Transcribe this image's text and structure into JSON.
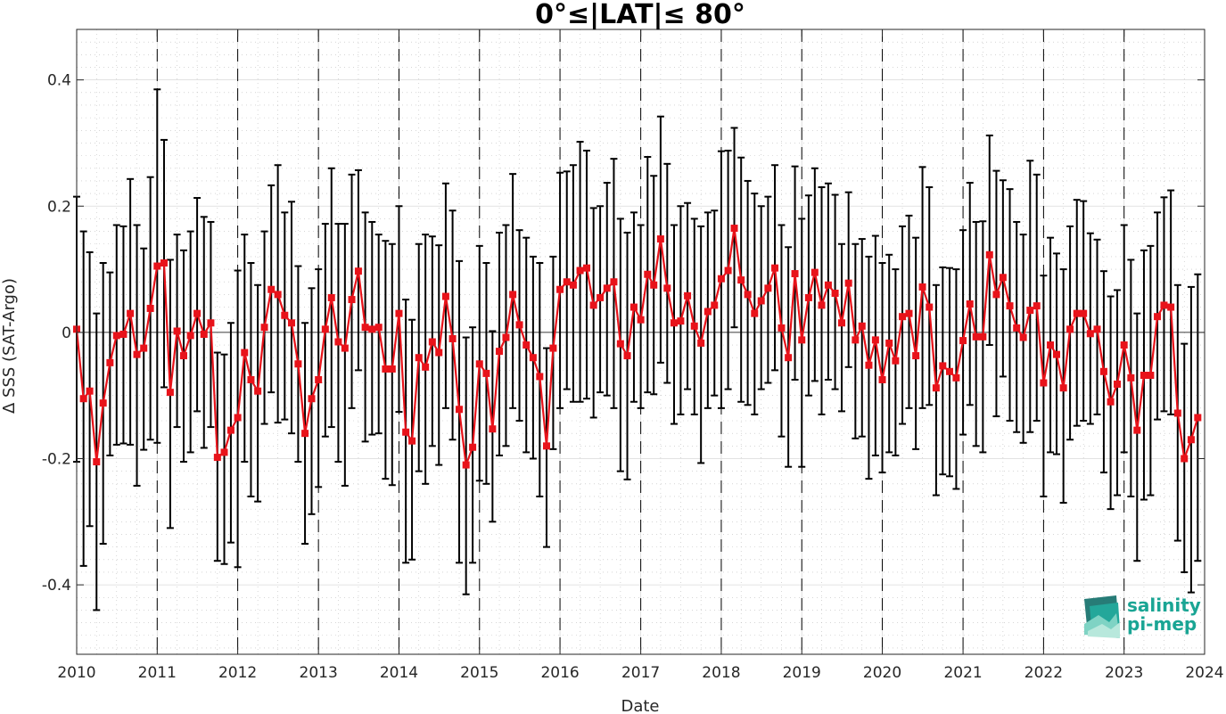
{
  "logo": {
    "line1": "salinity",
    "line2": "pi-mep",
    "color": "#1aa594"
  },
  "chart_data": {
    "type": "line",
    "title": "0°≤|LAT|≤ 80°",
    "xlabel": "Date",
    "ylabel": "Δ SSS (SAT-Argo)",
    "xlim": [
      "2010-01-01",
      "2024-01-01"
    ],
    "ylim": [
      -0.51,
      0.48
    ],
    "x_ticks": [
      "2010",
      "2011",
      "2012",
      "2013",
      "2014",
      "2015",
      "2016",
      "2017",
      "2018",
      "2019",
      "2020",
      "2021",
      "2022",
      "2023",
      "2024"
    ],
    "y_ticks": [
      -0.4,
      -0.2,
      0,
      0.2,
      0.4
    ],
    "y_tick_labels": [
      "-0.4",
      "-0.2",
      "0",
      "0.2",
      "0.4"
    ],
    "grid": true,
    "year_separators": "dashed vertical lines at each year start",
    "series": [
      {
        "color": "#e8131a",
        "marker": "square",
        "error_bar_color": "#000000",
        "dates": [
          "2010-01",
          "2010-02",
          "2010-03",
          "2010-04",
          "2010-05",
          "2010-06",
          "2010-07",
          "2010-08",
          "2010-09",
          "2010-10",
          "2010-11",
          "2010-12",
          "2011-01",
          "2011-02",
          "2011-03",
          "2011-04",
          "2011-05",
          "2011-06",
          "2011-07",
          "2011-08",
          "2011-09",
          "2011-10",
          "2011-11",
          "2011-12",
          "2012-01",
          "2012-02",
          "2012-03",
          "2012-04",
          "2012-05",
          "2012-06",
          "2012-07",
          "2012-08",
          "2012-09",
          "2012-10",
          "2012-11",
          "2012-12",
          "2013-01",
          "2013-02",
          "2013-03",
          "2013-04",
          "2013-05",
          "2013-06",
          "2013-07",
          "2013-08",
          "2013-09",
          "2013-10",
          "2013-11",
          "2013-12",
          "2014-01",
          "2014-02",
          "2014-03",
          "2014-04",
          "2014-05",
          "2014-06",
          "2014-07",
          "2014-08",
          "2014-09",
          "2014-10",
          "2014-11",
          "2014-12",
          "2015-01",
          "2015-02",
          "2015-03",
          "2015-04",
          "2015-05",
          "2015-06",
          "2015-07",
          "2015-08",
          "2015-09",
          "2015-10",
          "2015-11",
          "2015-12",
          "2016-01",
          "2016-02",
          "2016-03",
          "2016-04",
          "2016-05",
          "2016-06",
          "2016-07",
          "2016-08",
          "2016-09",
          "2016-10",
          "2016-11",
          "2016-12",
          "2017-01",
          "2017-02",
          "2017-03",
          "2017-04",
          "2017-05",
          "2017-06",
          "2017-07",
          "2017-08",
          "2017-09",
          "2017-10",
          "2017-11",
          "2017-12",
          "2018-01",
          "2018-02",
          "2018-03",
          "2018-04",
          "2018-05",
          "2018-06",
          "2018-07",
          "2018-08",
          "2018-09",
          "2018-10",
          "2018-11",
          "2018-12",
          "2019-01",
          "2019-02",
          "2019-03",
          "2019-04",
          "2019-05",
          "2019-06",
          "2019-07",
          "2019-08",
          "2019-09",
          "2019-10",
          "2019-11",
          "2019-12",
          "2020-01",
          "2020-02",
          "2020-03",
          "2020-04",
          "2020-05",
          "2020-06",
          "2020-07",
          "2020-08",
          "2020-09",
          "2020-10",
          "2020-11",
          "2020-12",
          "2021-01",
          "2021-02",
          "2021-03",
          "2021-04",
          "2021-05",
          "2021-06",
          "2021-07",
          "2021-08",
          "2021-09",
          "2021-10",
          "2021-11",
          "2021-12",
          "2022-01",
          "2022-02",
          "2022-03",
          "2022-04",
          "2022-05",
          "2022-06",
          "2022-07",
          "2022-08",
          "2022-09",
          "2022-10",
          "2022-11",
          "2022-12",
          "2023-01",
          "2023-02",
          "2023-03",
          "2023-04",
          "2023-05",
          "2023-06",
          "2023-07",
          "2023-08",
          "2023-09",
          "2023-10",
          "2023-11",
          "2023-12"
        ],
        "values": [
          0.005,
          -0.105,
          -0.093,
          -0.205,
          -0.112,
          -0.048,
          -0.005,
          -0.003,
          0.03,
          -0.035,
          -0.025,
          0.038,
          0.105,
          0.11,
          -0.095,
          0.002,
          -0.037,
          -0.005,
          0.03,
          -0.003,
          0.015,
          -0.198,
          -0.19,
          -0.155,
          -0.135,
          -0.032,
          -0.075,
          -0.093,
          0.008,
          0.068,
          0.06,
          0.027,
          0.015,
          -0.05,
          -0.16,
          -0.105,
          -0.075,
          0.005,
          0.055,
          -0.015,
          -0.025,
          0.052,
          0.097,
          0.008,
          0.005,
          0.008,
          -0.058,
          -0.058,
          0.03,
          -0.158,
          -0.172,
          -0.04,
          -0.055,
          -0.015,
          -0.032,
          0.057,
          -0.01,
          -0.122,
          -0.21,
          -0.182,
          -0.05,
          -0.065,
          -0.153,
          -0.03,
          -0.008,
          0.06,
          0.012,
          -0.02,
          -0.04,
          -0.07,
          -0.18,
          -0.025,
          0.068,
          0.08,
          0.075,
          0.098,
          0.102,
          0.043,
          0.055,
          0.07,
          0.08,
          -0.018,
          -0.037,
          0.04,
          0.02,
          0.092,
          0.075,
          0.148,
          0.07,
          0.015,
          0.018,
          0.058,
          0.01,
          -0.017,
          0.033,
          0.043,
          0.085,
          0.098,
          0.165,
          0.083,
          0.06,
          0.03,
          0.05,
          0.07,
          0.102,
          0.007,
          -0.04,
          0.093,
          -0.012,
          0.055,
          0.095,
          0.043,
          0.075,
          0.062,
          0.015,
          0.078,
          -0.012,
          0.01,
          -0.052,
          -0.012,
          -0.075,
          -0.017,
          -0.045,
          0.025,
          0.03,
          -0.037,
          0.072,
          0.04,
          -0.088,
          -0.053,
          -0.062,
          -0.072,
          -0.013,
          0.045,
          -0.007,
          -0.007,
          0.123,
          0.06,
          0.087,
          0.042,
          0.007,
          -0.008,
          0.035,
          0.042,
          -0.08,
          -0.02,
          -0.035,
          -0.088,
          0.005,
          0.03,
          0.03,
          -0.002,
          0.005,
          -0.062,
          -0.11,
          -0.082,
          -0.02,
          -0.072,
          -0.155,
          -0.068,
          -0.068,
          0.025,
          0.043,
          0.04,
          -0.128,
          -0.2,
          -0.17,
          -0.135
        ],
        "error_lower": [
          -0.205,
          -0.37,
          -0.307,
          -0.44,
          -0.335,
          -0.195,
          -0.178,
          -0.176,
          -0.178,
          -0.243,
          -0.186,
          -0.17,
          -0.175,
          -0.087,
          -0.31,
          -0.15,
          -0.205,
          -0.19,
          -0.125,
          -0.183,
          -0.15,
          -0.362,
          -0.367,
          -0.333,
          -0.372,
          -0.205,
          -0.26,
          -0.268,
          -0.145,
          -0.095,
          -0.143,
          -0.138,
          -0.16,
          -0.205,
          -0.335,
          -0.288,
          -0.245,
          -0.165,
          -0.15,
          -0.205,
          -0.243,
          -0.12,
          -0.06,
          -0.173,
          -0.162,
          -0.16,
          -0.232,
          -0.242,
          -0.126,
          -0.365,
          -0.36,
          -0.22,
          -0.24,
          -0.18,
          -0.21,
          -0.12,
          -0.17,
          -0.365,
          -0.415,
          -0.365,
          -0.235,
          -0.24,
          -0.3,
          -0.195,
          -0.18,
          -0.12,
          -0.14,
          -0.19,
          -0.2,
          -0.26,
          -0.34,
          -0.185,
          -0.12,
          -0.09,
          -0.11,
          -0.11,
          -0.105,
          -0.135,
          -0.095,
          -0.1,
          -0.12,
          -0.22,
          -0.233,
          -0.11,
          -0.12,
          -0.095,
          -0.098,
          -0.048,
          -0.08,
          -0.145,
          -0.13,
          -0.09,
          -0.13,
          -0.207,
          -0.12,
          -0.1,
          -0.12,
          -0.09,
          0.008,
          -0.11,
          -0.115,
          -0.13,
          -0.09,
          -0.08,
          -0.06,
          -0.165,
          -0.213,
          -0.075,
          -0.213,
          -0.1,
          -0.077,
          -0.13,
          -0.075,
          -0.09,
          -0.125,
          -0.055,
          -0.168,
          -0.165,
          -0.232,
          -0.195,
          -0.222,
          -0.19,
          -0.195,
          -0.145,
          -0.12,
          -0.185,
          -0.12,
          -0.115,
          -0.258,
          -0.225,
          -0.228,
          -0.248,
          -0.162,
          -0.115,
          -0.18,
          -0.19,
          -0.02,
          -0.133,
          -0.07,
          -0.14,
          -0.158,
          -0.175,
          -0.158,
          -0.14,
          -0.26,
          -0.19,
          -0.193,
          -0.27,
          -0.17,
          -0.148,
          -0.14,
          -0.145,
          -0.13,
          -0.222,
          -0.28,
          -0.258,
          -0.19,
          -0.26,
          -0.362,
          -0.265,
          -0.258,
          -0.138,
          -0.125,
          -0.13,
          -0.33,
          -0.38,
          -0.412,
          -0.362
        ],
        "error_upper": [
          0.215,
          0.16,
          0.127,
          0.03,
          0.11,
          0.095,
          0.17,
          0.168,
          0.243,
          0.17,
          0.133,
          0.246,
          0.385,
          0.305,
          0.115,
          0.155,
          0.13,
          0.16,
          0.213,
          0.183,
          0.175,
          -0.032,
          -0.035,
          0.015,
          0.098,
          0.155,
          0.11,
          0.075,
          0.16,
          0.233,
          0.265,
          0.19,
          0.207,
          0.105,
          0.015,
          0.07,
          0.1,
          0.172,
          0.26,
          0.172,
          0.172,
          0.25,
          0.257,
          0.19,
          0.175,
          0.155,
          0.145,
          0.14,
          0.2,
          0.052,
          0.02,
          0.14,
          0.155,
          0.152,
          0.138,
          0.236,
          0.193,
          0.113,
          -0.008,
          0.008,
          0.137,
          0.11,
          0.002,
          0.158,
          0.17,
          0.251,
          0.162,
          0.15,
          0.12,
          0.11,
          -0.025,
          0.12,
          0.253,
          0.255,
          0.265,
          0.302,
          0.288,
          0.197,
          0.2,
          0.237,
          0.275,
          0.18,
          0.158,
          0.19,
          0.17,
          0.278,
          0.248,
          0.342,
          0.267,
          0.17,
          0.2,
          0.205,
          0.18,
          0.168,
          0.19,
          0.193,
          0.287,
          0.288,
          0.324,
          0.277,
          0.24,
          0.22,
          0.2,
          0.215,
          0.265,
          0.17,
          0.135,
          0.263,
          0.18,
          0.217,
          0.26,
          0.23,
          0.236,
          0.218,
          0.14,
          0.222,
          0.14,
          0.148,
          0.12,
          0.153,
          0.11,
          0.123,
          0.1,
          0.168,
          0.185,
          0.15,
          0.262,
          0.23,
          0.075,
          0.103,
          0.102,
          0.1,
          0.162,
          0.237,
          0.175,
          0.176,
          0.312,
          0.256,
          0.241,
          0.227,
          0.175,
          0.155,
          0.272,
          0.25,
          0.09,
          0.15,
          0.125,
          0.1,
          0.168,
          0.21,
          0.208,
          0.157,
          0.147,
          0.097,
          0.057,
          0.067,
          0.17,
          0.115,
          0.03,
          0.13,
          0.137,
          0.19,
          0.214,
          0.225,
          0.075,
          -0.018,
          0.072,
          0.092
        ]
      }
    ]
  }
}
